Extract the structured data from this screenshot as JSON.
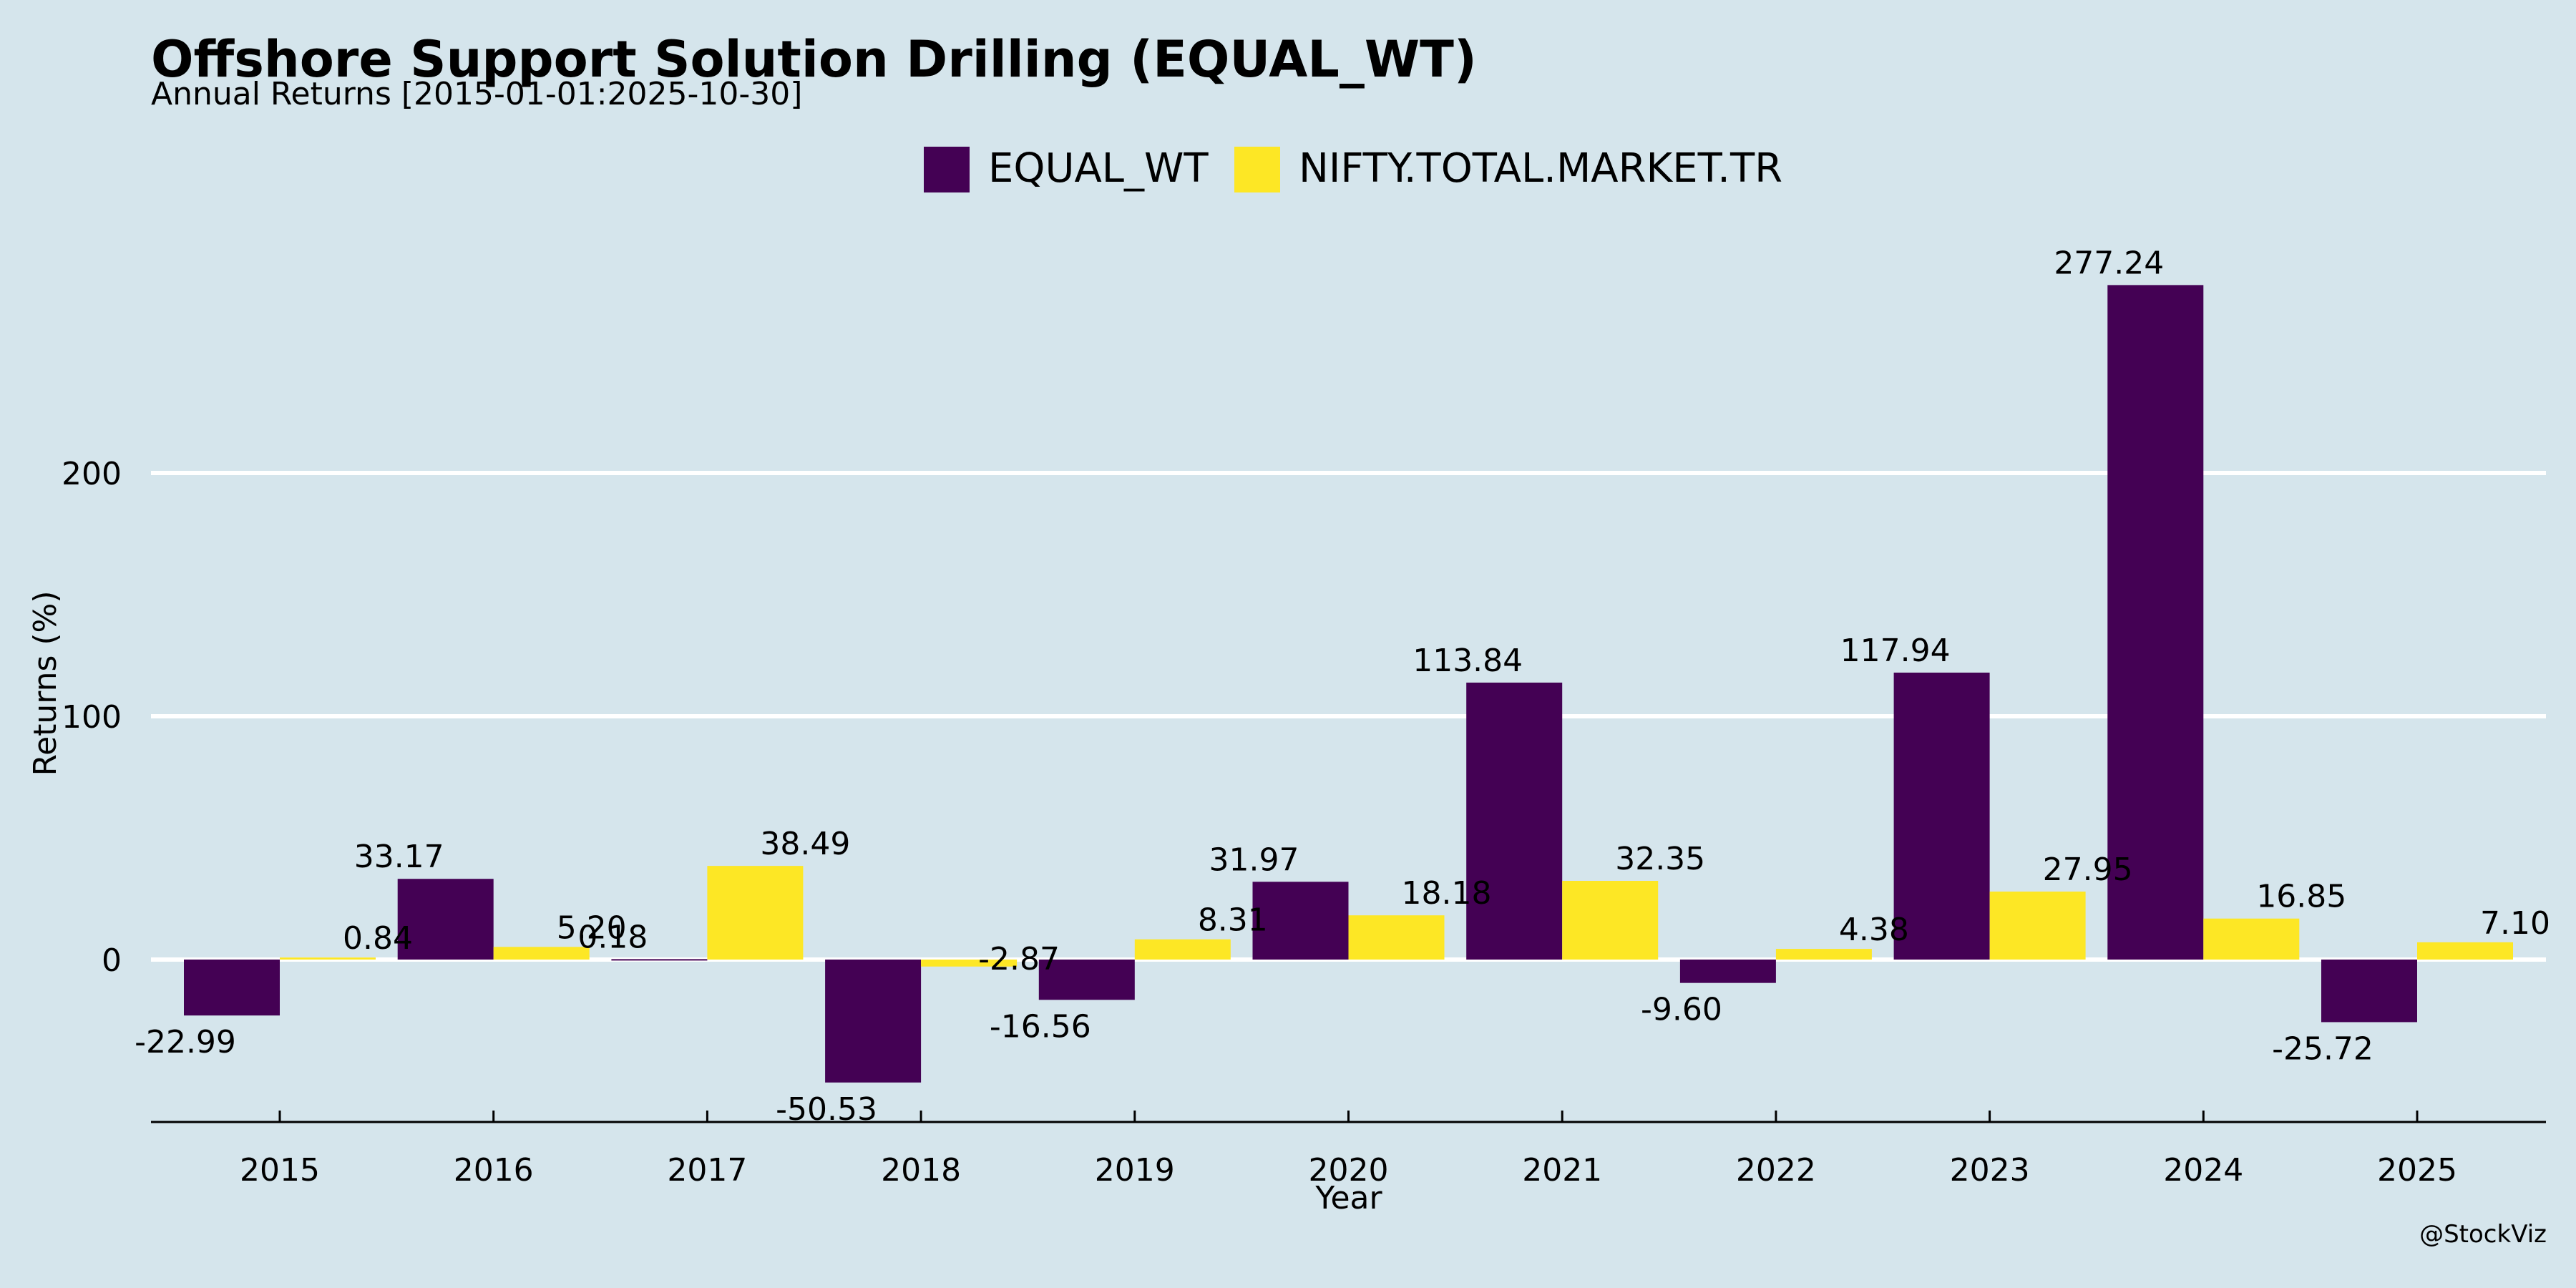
{
  "header": {
    "title": "Offshore Support Solution Drilling (EQUAL_WT)",
    "subtitle": "Annual Returns [2015-01-01:2025-10-30]"
  },
  "footer": {
    "watermark": "@StockViz"
  },
  "chart_data": {
    "type": "bar",
    "title": "Offshore Support Solution Drilling (EQUAL_WT)",
    "subtitle": "Annual Returns [2015-01-01:2025-10-30]",
    "xlabel": "Year",
    "ylabel": "Returns (%)",
    "categories": [
      "2015",
      "2016",
      "2017",
      "2018",
      "2019",
      "2020",
      "2021",
      "2022",
      "2023",
      "2024",
      "2025"
    ],
    "series": [
      {
        "name": "EQUAL_WT",
        "color": "#440154",
        "values": [
          -22.99,
          33.17,
          0.18,
          -50.53,
          -16.56,
          31.97,
          113.84,
          -9.6,
          117.94,
          277.24,
          -25.72
        ],
        "labels": [
          "-22.99",
          "33.17",
          "0.18",
          "-50.53",
          "-16.56",
          "31.97",
          "113.84",
          "-9.60",
          "117.94",
          "277.24",
          "-25.72"
        ]
      },
      {
        "name": "NIFTY.TOTAL.MARKET.TR",
        "color": "#fde725",
        "values": [
          0.84,
          5.2,
          38.49,
          -2.87,
          8.31,
          18.18,
          32.35,
          4.38,
          27.95,
          16.85,
          7.1
        ],
        "labels": [
          "0.84",
          "5.20",
          "38.49",
          "-2.87",
          "8.31",
          "18.18",
          "32.35",
          "4.38",
          "27.95",
          "16.85",
          "7.10"
        ]
      }
    ],
    "yticks": [
      0,
      100,
      200
    ],
    "ylim": [
      -67,
      300
    ],
    "grid": true,
    "legend_position": "top-center"
  }
}
